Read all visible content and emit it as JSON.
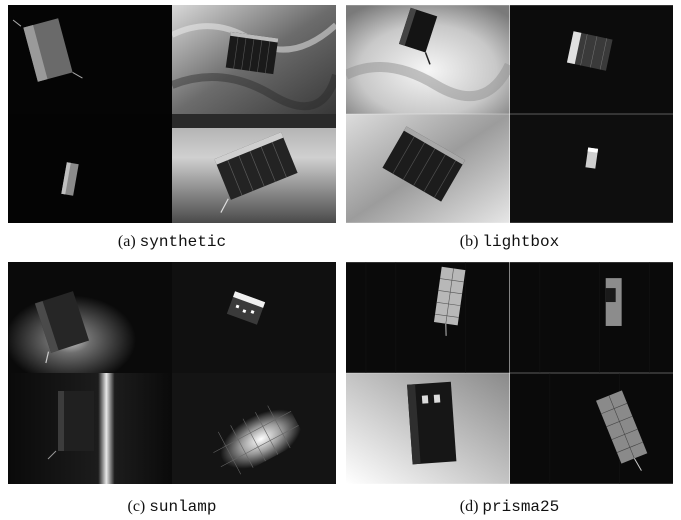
{
  "figure": {
    "panels": [
      {
        "id": "a",
        "label": "(a)",
        "name": "synthetic"
      },
      {
        "id": "b",
        "label": "(b)",
        "name": "lightbox"
      },
      {
        "id": "c",
        "label": "(c)",
        "name": "sunlamp"
      },
      {
        "id": "d",
        "label": "(d)",
        "name": "prisma25"
      }
    ]
  }
}
